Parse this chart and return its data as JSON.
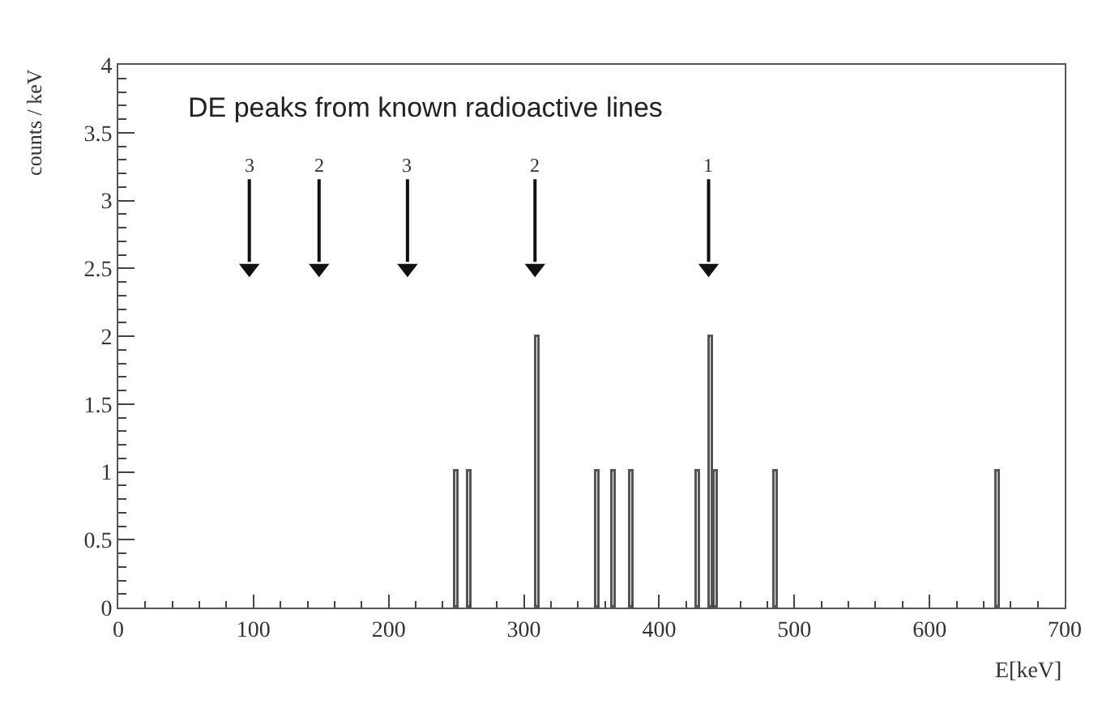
{
  "chart_data": {
    "type": "bar",
    "series": [
      {
        "color": "#555555",
        "x": [
          250,
          259.8,
          310.8,
          354.6,
          367,
          380.4,
          428.9,
          438.7,
          442.3,
          486.6,
          650.5
        ],
        "values": [
          1,
          1,
          2,
          1,
          1,
          1,
          1,
          2,
          1,
          1,
          1
        ]
      },
      {
        "type": "scatter",
        "color": "#111111",
        "marker": "triangle",
        "x": [
          96.9,
          148.5,
          213.9,
          308.2,
          436.6
        ],
        "values": [
          2.5,
          2.5,
          2.5,
          2.5,
          2.5
        ]
      }
    ],
    "xlabel": "E[keV]",
    "ylabel": "counts / keV",
    "xlim": [
      0,
      700
    ],
    "ylim": [
      0,
      4
    ],
    "xticks": [
      0,
      100,
      200,
      300,
      400,
      500,
      600,
      700
    ],
    "yticks": [
      0,
      0.5,
      1,
      1.5,
      2,
      2.5,
      3,
      3.5,
      4
    ],
    "annotations": [
      "DE peaks from known radioactive lines",
      {
        "text": "3",
        "x": 96.9,
        "y": 2.5
      },
      {
        "text": "2",
        "x": 148.5,
        "y": 2.5
      },
      {
        "text": "3",
        "x": 213.9,
        "y": 2.5
      },
      {
        "text": "2",
        "x": 308.2,
        "y": 2.5
      },
      {
        "text": "1",
        "x": 436.6,
        "y": 2.5
      }
    ]
  }
}
